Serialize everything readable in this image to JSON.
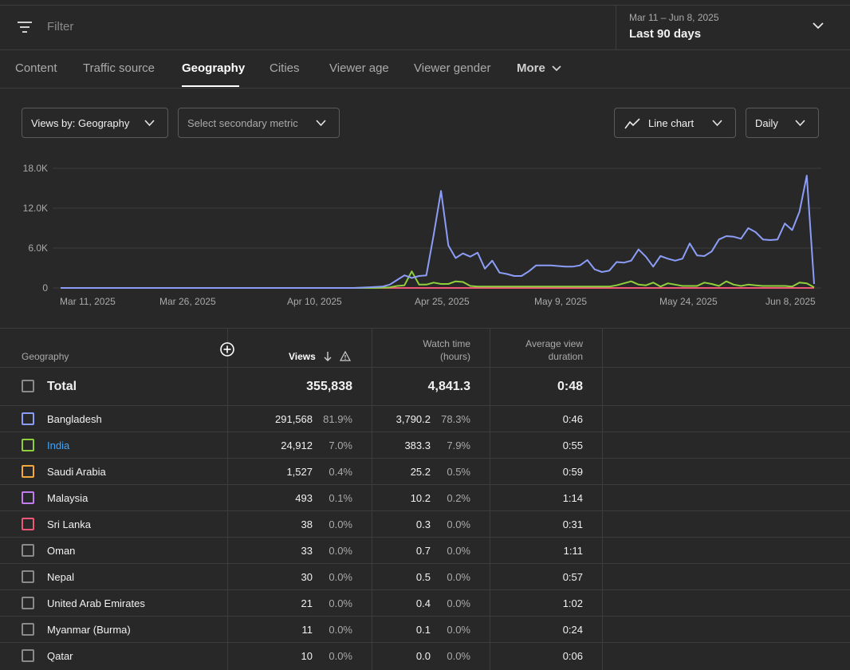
{
  "filter": {
    "placeholder": "Filter"
  },
  "date_picker": {
    "range": "Mar 11 – Jun 8, 2025",
    "label": "Last 90 days"
  },
  "tabs": [
    {
      "label": "Content"
    },
    {
      "label": "Traffic source"
    },
    {
      "label": "Geography",
      "active": true
    },
    {
      "label": "Cities"
    },
    {
      "label": "Viewer age"
    },
    {
      "label": "Viewer gender"
    },
    {
      "label": "More"
    }
  ],
  "controls": {
    "primary_metric": "Views by: Geography",
    "secondary_metric": "Select secondary metric",
    "chart_type": "Line chart",
    "interval": "Daily"
  },
  "colors": {
    "bangladesh": "#8c9df7",
    "india": "#8fcf3c",
    "saudi": "#f4a73a",
    "malaysia": "#c27cf0",
    "srilanka": "#ef5777",
    "link": "#3ea6ff"
  },
  "chart_data": {
    "type": "line",
    "ylim": [
      0,
      18000
    ],
    "y_ticks": [
      "18.0K",
      "12.0K",
      "6.0K",
      "0"
    ],
    "x_ticks": [
      "Mar 11, 2025",
      "Mar 26, 2025",
      "Apr 10, 2025",
      "Apr 25, 2025",
      "May 9, 2025",
      "May 24, 2025",
      "Jun 8, 2025"
    ],
    "x_start": "2025-03-11",
    "x_end": "2025-06-08",
    "grid": true,
    "series": [
      {
        "name": "Bangladesh",
        "color": "#8c9df7",
        "values": [
          0,
          0,
          0,
          0,
          0,
          0,
          0,
          0,
          0,
          0,
          0,
          0,
          0,
          0,
          0,
          0,
          0,
          0,
          0,
          0,
          0,
          0,
          0,
          0,
          0,
          0,
          0,
          0,
          0,
          0,
          0,
          0,
          0,
          0,
          0,
          0,
          0,
          0,
          0,
          0,
          0,
          50,
          100,
          150,
          200,
          500,
          1200,
          1900,
          1500,
          1800,
          1900,
          8000,
          14600,
          6400,
          4500,
          5200,
          4700,
          5300,
          2900,
          4100,
          2300,
          2100,
          1800,
          1800,
          2500,
          3400,
          3400,
          3400,
          3300,
          3200,
          3200,
          3400,
          4200,
          2800,
          2400,
          2600,
          3900,
          3800,
          4100,
          5800,
          4700,
          3200,
          4800,
          4400,
          4100,
          4400,
          6700,
          4900,
          4800,
          5500,
          7300,
          7800,
          7700,
          7400,
          9000,
          8400,
          7300,
          7200,
          7300,
          9700,
          8700,
          11500,
          16900,
          600
        ]
      },
      {
        "name": "India",
        "color": "#8fcf3c",
        "values": [
          0,
          0,
          0,
          0,
          0,
          0,
          0,
          0,
          0,
          0,
          0,
          0,
          0,
          0,
          0,
          0,
          0,
          0,
          0,
          0,
          0,
          0,
          0,
          0,
          0,
          0,
          0,
          0,
          0,
          0,
          0,
          0,
          0,
          0,
          0,
          0,
          0,
          0,
          0,
          0,
          0,
          0,
          0,
          0,
          50,
          100,
          300,
          400,
          2500,
          500,
          500,
          800,
          600,
          600,
          1000,
          900,
          300,
          200,
          200,
          200,
          200,
          200,
          200,
          200,
          200,
          200,
          200,
          200,
          200,
          200,
          200,
          200,
          200,
          200,
          200,
          200,
          400,
          700,
          1000,
          500,
          400,
          800,
          200,
          700,
          500,
          300,
          300,
          300,
          800,
          600,
          300,
          1000,
          500,
          300,
          500,
          400,
          300,
          300,
          300,
          300,
          200,
          800,
          700,
          100
        ]
      },
      {
        "name": "Sri Lanka",
        "color": "#ef5777",
        "values": [
          0,
          0,
          0,
          0,
          0,
          0,
          0,
          0,
          0,
          0,
          0,
          0,
          0,
          0,
          0,
          0,
          0,
          0,
          0,
          0,
          0,
          0,
          0,
          0,
          0,
          0,
          0,
          0,
          0,
          0,
          0,
          0,
          0,
          0,
          0,
          0,
          0,
          0,
          0,
          0,
          0,
          0,
          0,
          0,
          0,
          0,
          0,
          0,
          0,
          0,
          0,
          0,
          0,
          0,
          0,
          0,
          0,
          0,
          0,
          0,
          0,
          0,
          0,
          0,
          0,
          0,
          0,
          0,
          0,
          0,
          0,
          0,
          0,
          0,
          0,
          0,
          0,
          0,
          0,
          0,
          0,
          0,
          0,
          0,
          0,
          0,
          0,
          0,
          0,
          0,
          0,
          0,
          0,
          0,
          0,
          0,
          0,
          0,
          0,
          0,
          0,
          0,
          0,
          0,
          0
        ]
      }
    ]
  },
  "table": {
    "headers": {
      "geography": "Geography",
      "views": "Views",
      "watch_time_1": "Watch time",
      "watch_time_2": "(hours)",
      "avg_1": "Average view",
      "avg_2": "duration"
    },
    "total": {
      "name": "Total",
      "views": "355,838",
      "watch": "4,841.3",
      "avg": "0:48"
    },
    "rows": [
      {
        "name": "Bangladesh",
        "views": "291,568",
        "views_pct": "81.9%",
        "watch": "3,790.2",
        "watch_pct": "78.3%",
        "avg": "0:46",
        "color": "#8c9df7"
      },
      {
        "name": "India",
        "views": "24,912",
        "views_pct": "7.0%",
        "watch": "383.3",
        "watch_pct": "7.9%",
        "avg": "0:55",
        "color": "#8fcf3c",
        "link": true
      },
      {
        "name": "Saudi Arabia",
        "views": "1,527",
        "views_pct": "0.4%",
        "watch": "25.2",
        "watch_pct": "0.5%",
        "avg": "0:59",
        "color": "#f4a73a"
      },
      {
        "name": "Malaysia",
        "views": "493",
        "views_pct": "0.1%",
        "watch": "10.2",
        "watch_pct": "0.2%",
        "avg": "1:14",
        "color": "#c27cf0"
      },
      {
        "name": "Sri Lanka",
        "views": "38",
        "views_pct": "0.0%",
        "watch": "0.3",
        "watch_pct": "0.0%",
        "avg": "0:31",
        "color": "#ef5777"
      },
      {
        "name": "Oman",
        "views": "33",
        "views_pct": "0.0%",
        "watch": "0.7",
        "watch_pct": "0.0%",
        "avg": "1:11",
        "color": "#8a8a8a"
      },
      {
        "name": "Nepal",
        "views": "30",
        "views_pct": "0.0%",
        "watch": "0.5",
        "watch_pct": "0.0%",
        "avg": "0:57",
        "color": "#8a8a8a"
      },
      {
        "name": "United Arab Emirates",
        "views": "21",
        "views_pct": "0.0%",
        "watch": "0.4",
        "watch_pct": "0.0%",
        "avg": "1:02",
        "color": "#8a8a8a"
      },
      {
        "name": "Myanmar (Burma)",
        "views": "11",
        "views_pct": "0.0%",
        "watch": "0.1",
        "watch_pct": "0.0%",
        "avg": "0:24",
        "color": "#8a8a8a"
      },
      {
        "name": "Qatar",
        "views": "10",
        "views_pct": "0.0%",
        "watch": "0.0",
        "watch_pct": "0.0%",
        "avg": "0:06",
        "color": "#8a8a8a"
      }
    ]
  }
}
